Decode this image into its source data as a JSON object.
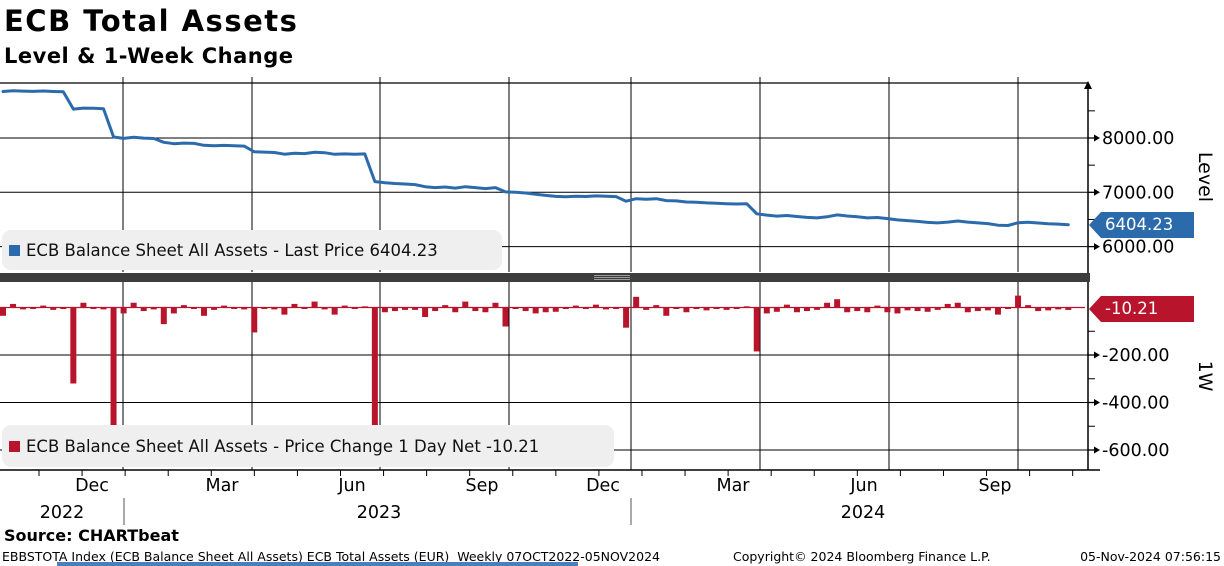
{
  "header": {
    "title": "ECB Total Assets",
    "subtitle": "Level & 1-Week Change"
  },
  "legends": {
    "top": "ECB Balance Sheet All Assets - Last Price 6404.23",
    "bottom": "ECB Balance Sheet All Assets - Price Change 1 Day Net -10.21"
  },
  "badges": {
    "level": "6404.23",
    "one_week": "-10.21"
  },
  "axis_titles": {
    "top": "Level",
    "bottom": "1W"
  },
  "colors": {
    "line_blue": "#2c6bab",
    "bar_red": "#b8142c",
    "grid": "#000000",
    "separator": "#3d3d3d",
    "legend_bg": "#efefef"
  },
  "footer": {
    "source": "Source: CHARTbeat",
    "info": "EBBSTOTA Index (ECB Balance Sheet All Assets) ECB Total Assets (EUR)  Weekly 07OCT2022-05NOV2024",
    "copyright": "Copyright© 2024 Bloomberg Finance L.P.",
    "timestamp": "05-Nov-2024 07:56:15"
  },
  "chart_data": {
    "type": "combo",
    "x_unit": "weekly",
    "x_range_label": "07OCT2022-05NOV2024",
    "x_axis": {
      "month_labels": [
        "Dec",
        "Mar",
        "Jun",
        "Sep",
        "Dec",
        "Mar",
        "Jun",
        "Sep"
      ],
      "year_labels": [
        "2022",
        "2023",
        "2024"
      ]
    },
    "panels": [
      {
        "type": "line",
        "name": "ECB Balance Sheet All Assets - Last Price",
        "last_value": 6404.23,
        "y_ticks": [
          8000,
          7000,
          6000
        ],
        "y_minor_ticks": [
          8500,
          7500,
          6500
        ],
        "note": "level series is the cumulative sum of the weekly changes below, anchored so the final point equals last_value"
      },
      {
        "type": "bar",
        "name": "ECB Balance Sheet All Assets - Price Change 1 Day Net",
        "last_value": -10.21,
        "y_ticks": [
          -200,
          -400,
          -600
        ],
        "y_minor_ticks": [
          -100,
          -300,
          -500
        ],
        "weekly_changes": [
          -35,
          15,
          -8,
          -5,
          8,
          -10,
          -5,
          -320,
          20,
          -5,
          -8,
          -520,
          -25,
          20,
          -15,
          -8,
          -70,
          -25,
          10,
          -5,
          -35,
          -10,
          8,
          -5,
          -8,
          -105,
          -5,
          -8,
          -30,
          15,
          -5,
          25,
          -8,
          -30,
          8,
          -5,
          5,
          -510,
          -20,
          -15,
          -10,
          -10,
          -40,
          -15,
          10,
          -20,
          25,
          -15,
          -20,
          20,
          -80,
          -5,
          -15,
          -25,
          -20,
          -18,
          -5,
          8,
          -5,
          12,
          -8,
          -5,
          -85,
          45,
          -10,
          10,
          -35,
          -5,
          -20,
          -5,
          -12,
          -5,
          -10,
          -5,
          5,
          -185,
          -25,
          -18,
          12,
          -20,
          -15,
          -10,
          20,
          35,
          -20,
          -15,
          -20,
          8,
          -20,
          -25,
          -12,
          -15,
          -18,
          -10,
          15,
          20,
          -20,
          -15,
          -12,
          -30,
          -5,
          50,
          10,
          -15,
          -12,
          -8,
          -10.21
        ]
      }
    ]
  }
}
